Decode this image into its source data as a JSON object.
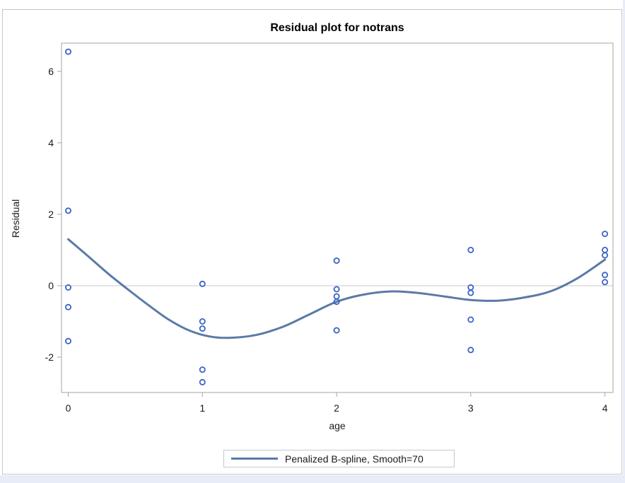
{
  "page": {
    "background": "#ffffff",
    "margin_strip_color": "#e8ecf8"
  },
  "chart_data": {
    "type": "scatter",
    "title": "Residual plot for notrans",
    "xlabel": "age",
    "ylabel": "Residual",
    "xlim": [
      -0.05,
      4.06
    ],
    "ylim": [
      -2.99,
      6.79
    ],
    "xticks": [
      0,
      1,
      2,
      3,
      4
    ],
    "yticks": [
      -2,
      0,
      2,
      4,
      6
    ],
    "grid": false,
    "refline_y": 0,
    "axis_color": "#a6a6a6",
    "refline_color": "#cbcbcb",
    "tick_text_color": "#1a1a1a",
    "legend": {
      "position": "bottom-center",
      "entries": [
        {
          "label": "Penalized B-spline, Smooth=70",
          "type": "line",
          "color": "#5B7AA6"
        }
      ]
    },
    "series": [
      {
        "name": "residual-points",
        "type": "scatter",
        "marker": "open-circle",
        "color": "#3B63C5",
        "points": [
          [
            0,
            6.55
          ],
          [
            0,
            2.1
          ],
          [
            0,
            -0.05
          ],
          [
            0,
            -0.6
          ],
          [
            0,
            -1.55
          ],
          [
            1,
            0.05
          ],
          [
            1,
            -1.0
          ],
          [
            1,
            -1.2
          ],
          [
            1,
            -2.35
          ],
          [
            1,
            -2.7
          ],
          [
            2,
            0.7
          ],
          [
            2,
            -0.1
          ],
          [
            2,
            -0.3
          ],
          [
            2,
            -0.45
          ],
          [
            2,
            -1.25
          ],
          [
            3,
            1.0
          ],
          [
            3,
            -0.05
          ],
          [
            3,
            -0.2
          ],
          [
            3,
            -0.95
          ],
          [
            3,
            -1.8
          ],
          [
            4,
            1.45
          ],
          [
            4,
            1.0
          ],
          [
            4,
            0.85
          ],
          [
            4,
            0.3
          ],
          [
            4,
            0.1
          ]
        ]
      },
      {
        "name": "penalized-bspline-fit",
        "type": "line",
        "color": "#5B7AA6",
        "stroke_width": 3,
        "points": [
          [
            0,
            1.3
          ],
          [
            0.15,
            0.82
          ],
          [
            0.3,
            0.33
          ],
          [
            0.45,
            -0.12
          ],
          [
            0.6,
            -0.55
          ],
          [
            0.75,
            -0.95
          ],
          [
            0.9,
            -1.25
          ],
          [
            1.05,
            -1.42
          ],
          [
            1.2,
            -1.46
          ],
          [
            1.4,
            -1.38
          ],
          [
            1.6,
            -1.15
          ],
          [
            1.8,
            -0.8
          ],
          [
            2.0,
            -0.45
          ],
          [
            2.2,
            -0.25
          ],
          [
            2.4,
            -0.16
          ],
          [
            2.6,
            -0.2
          ],
          [
            2.8,
            -0.3
          ],
          [
            3.0,
            -0.4
          ],
          [
            3.2,
            -0.42
          ],
          [
            3.4,
            -0.33
          ],
          [
            3.6,
            -0.15
          ],
          [
            3.8,
            0.22
          ],
          [
            4.0,
            0.73
          ]
        ]
      }
    ]
  }
}
